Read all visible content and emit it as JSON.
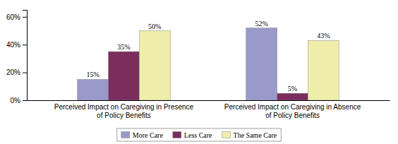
{
  "chart_data": {
    "type": "bar",
    "categories": [
      "Perceived Impact on Caregiving in Presence\nof Policy Benefits",
      "Perceived Impact on Caregiving in Absence\nof Policy Benefits"
    ],
    "series": [
      {
        "name": "More Care",
        "color": "#9999cc",
        "values": [
          15,
          52
        ],
        "value_labels": [
          "15%",
          "52%"
        ]
      },
      {
        "name": "Less Care",
        "color": "#7b2d5e",
        "values": [
          35,
          5
        ],
        "value_labels": [
          "35%",
          "5%"
        ]
      },
      {
        "name": "The Same Care",
        "color": "#eeeeaa",
        "values": [
          50,
          43
        ],
        "value_labels": [
          "50%",
          "43%"
        ]
      }
    ],
    "ylim": [
      0,
      65
    ],
    "yticks": [
      {
        "value": 0,
        "label": "0%"
      },
      {
        "value": 20,
        "label": "20%"
      },
      {
        "value": 40,
        "label": "40%"
      },
      {
        "value": 60,
        "label": "60%"
      }
    ],
    "grid": false,
    "legend": "bottom",
    "data_labels": true
  }
}
